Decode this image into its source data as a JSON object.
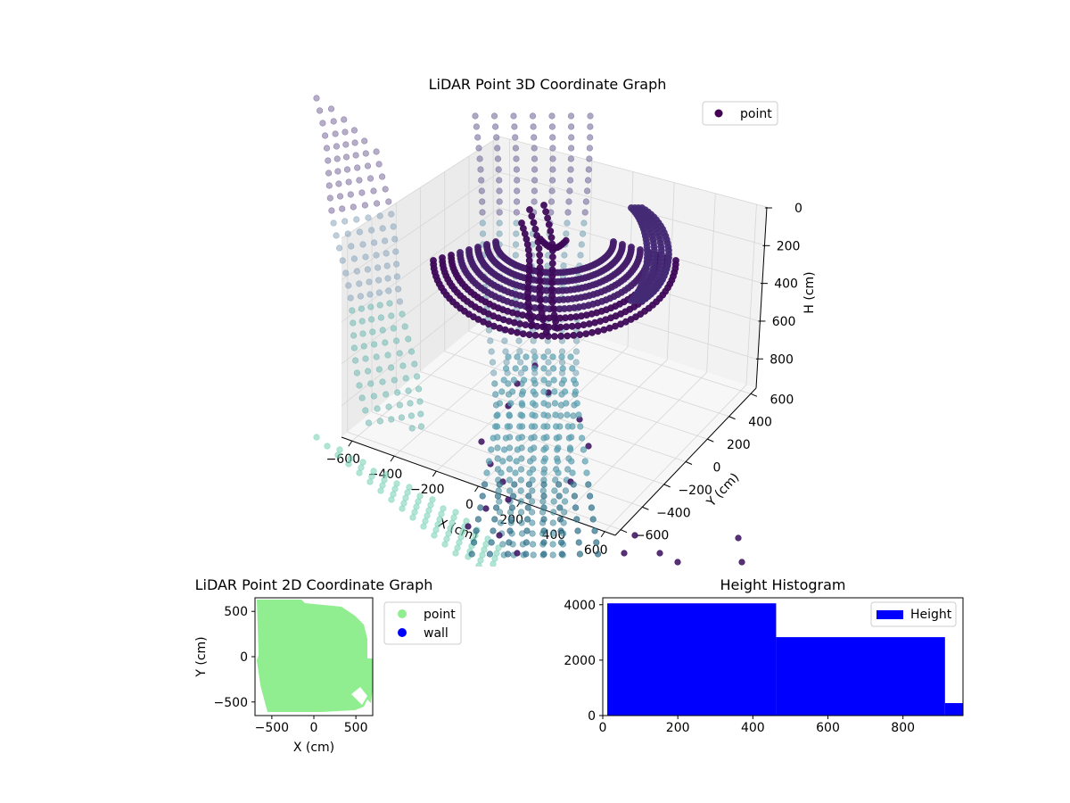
{
  "chart_data": [
    {
      "type": "scatter3d",
      "title": "LiDAR Point 3D Coordinate Graph",
      "xlabel": "X (cm)",
      "ylabel": "Y (cm)",
      "zlabel": "H (cm)",
      "xlim": [
        -650,
        650
      ],
      "ylim": [
        -650,
        650
      ],
      "zlim": [
        0,
        950
      ],
      "z_inverted": true,
      "x_ticks": [
        -600,
        -400,
        -200,
        0,
        200,
        400,
        600
      ],
      "x_tick_labels": [
        "−600",
        "−400",
        "−200",
        "0",
        "200",
        "400",
        "600"
      ],
      "y_ticks": [
        -600,
        -400,
        -200,
        0,
        200,
        400,
        600
      ],
      "y_tick_labels": [
        "−600",
        "−400",
        "−200",
        "0",
        "200",
        "400",
        "600"
      ],
      "z_ticks": [
        0,
        200,
        400,
        600,
        800
      ],
      "z_tick_labels": [
        "0",
        "200",
        "400",
        "600",
        "800"
      ],
      "legend": [
        {
          "label": "point",
          "color": "#440154"
        }
      ],
      "legend_position": "top-right",
      "colormap": "viridis"
    },
    {
      "type": "scatter",
      "title": "LiDAR Point 2D Coordinate Graph",
      "xlabel": "X (cm)",
      "ylabel": "Y (cm)",
      "xlim": [
        -700,
        700
      ],
      "ylim": [
        -650,
        650
      ],
      "x_ticks": [
        -500,
        0,
        500
      ],
      "x_tick_labels": [
        "−500",
        "0",
        "500"
      ],
      "y_ticks": [
        -500,
        0,
        500
      ],
      "y_tick_labels": [
        "−500",
        "0",
        "500"
      ],
      "series": [
        {
          "name": "point",
          "color": "#90ee90"
        },
        {
          "name": "wall",
          "color": "#0000ff"
        }
      ],
      "legend_position": "outside-right"
    },
    {
      "type": "bar",
      "title": "Height Histogram",
      "xlabel": "",
      "ylabel": "",
      "xlim": [
        0,
        960
      ],
      "ylim": [
        0,
        4250
      ],
      "bins": [
        {
          "start": 12,
          "end": 462,
          "count": 4050
        },
        {
          "start": 462,
          "end": 912,
          "count": 2830
        },
        {
          "start": 912,
          "end": 960,
          "count": 450
        }
      ],
      "x_ticks": [
        0,
        200,
        400,
        600,
        800
      ],
      "x_tick_labels": [
        "0",
        "200",
        "400",
        "600",
        "800"
      ],
      "y_ticks": [
        0,
        2000,
        4000
      ],
      "y_tick_labels": [
        "0",
        "2000",
        "4000"
      ],
      "series": [
        {
          "name": "Height",
          "color": "#0000ff"
        }
      ],
      "legend_position": "top-right"
    }
  ]
}
